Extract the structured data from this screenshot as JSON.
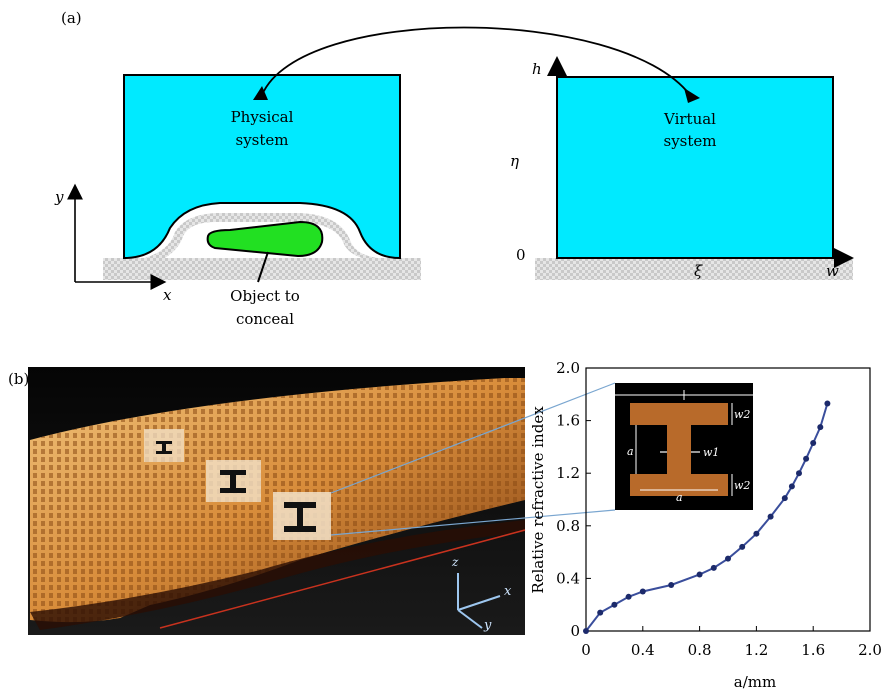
{
  "panel_a": {
    "label": "(a)",
    "physical": {
      "line1": "Physical",
      "line2": "system"
    },
    "virtual": {
      "line1": "Virtual",
      "line2": "system"
    },
    "object_label": {
      "line1": "Object to",
      "line2": "conceal"
    },
    "axis_y": "y",
    "axis_x": "x",
    "h": "h",
    "eta": "η",
    "zero": "0",
    "xi": "ξ",
    "w": "w"
  },
  "panel_b": {
    "label": "(b)",
    "inset": {
      "a_left": "a",
      "a_bottom": "a",
      "w1": "w1",
      "w2_top": "w2",
      "w2_bottom": "w2"
    },
    "photo_axes": {
      "z": "z",
      "x": "x",
      "y": "y"
    }
  },
  "chart_data": {
    "type": "line",
    "title": "",
    "xlabel": "a/mm",
    "ylabel": "Relative refractive index",
    "xlim": [
      0,
      2.0
    ],
    "ylim": [
      0,
      2.0
    ],
    "xticks": [
      "0",
      "0.4",
      "0.8",
      "1.2",
      "1.6",
      "2.0"
    ],
    "yticks": [
      "0",
      "0.4",
      "0.8",
      "1.2",
      "1.6",
      "2.0"
    ],
    "grid": false,
    "series": [
      {
        "color": "#3a4e9c",
        "x": [
          0,
          0.1,
          0.2,
          0.3,
          0.4,
          0.6,
          0.8,
          0.9,
          1.0,
          1.1,
          1.2,
          1.3,
          1.4,
          1.45,
          1.5,
          1.55,
          1.6,
          1.65,
          1.7
        ],
        "y": [
          0,
          0.14,
          0.2,
          0.26,
          0.3,
          0.35,
          0.43,
          0.48,
          0.55,
          0.64,
          0.74,
          0.87,
          1.01,
          1.1,
          1.2,
          1.31,
          1.43,
          1.55,
          1.73
        ]
      }
    ]
  }
}
